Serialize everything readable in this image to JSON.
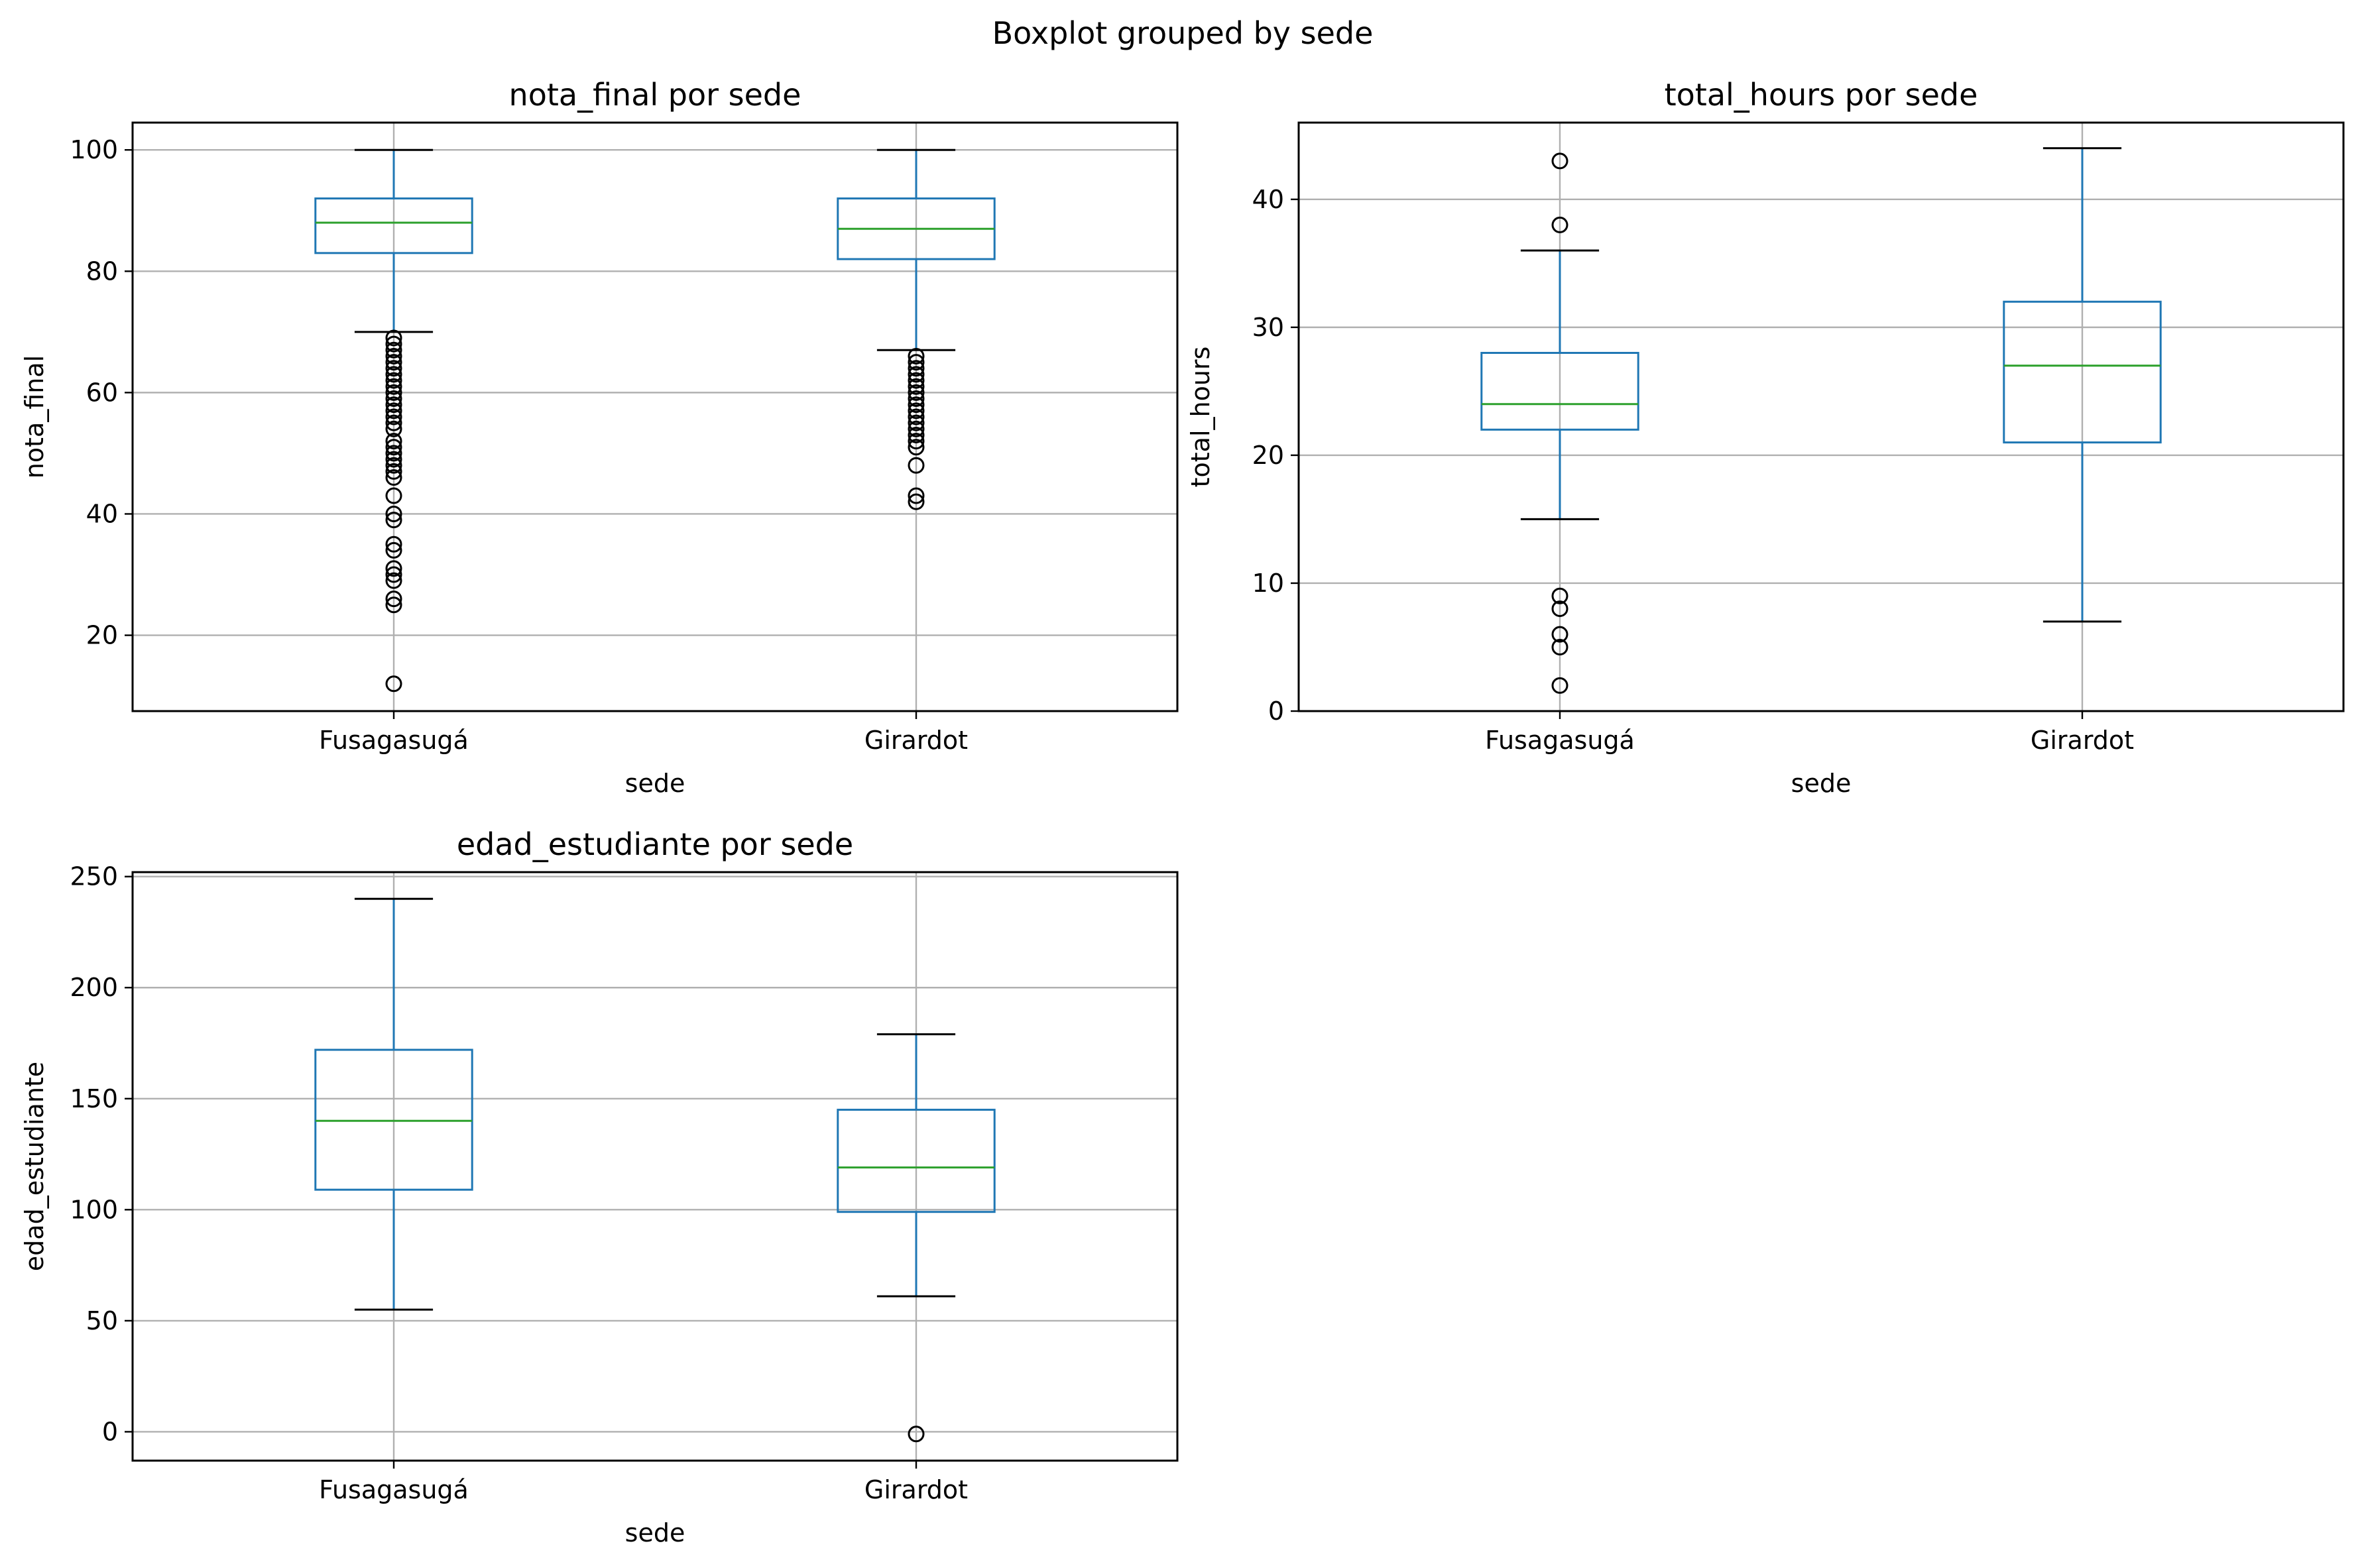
{
  "figure": {
    "suptitle": "Boxplot grouped by sede"
  },
  "style": {
    "box_color": "#1f77b4",
    "median_color": "#2ca02c",
    "whisker_cap_color": "#000000",
    "flier_color": "#000000",
    "grid_color": "#b0b0b0"
  },
  "chart_data": [
    {
      "type": "box",
      "title": "nota_final por sede",
      "xlabel": "sede",
      "ylabel": "nota_final",
      "categories": [
        "Fusagasugá",
        "Girardot"
      ],
      "ylim": [
        7.5,
        104.5
      ],
      "yticks": [
        20,
        40,
        60,
        80,
        100
      ],
      "grid": true,
      "boxes": [
        {
          "category": "Fusagasugá",
          "whislo": 70,
          "q1": 83,
          "med": 88,
          "q3": 92,
          "whishi": 100,
          "fliers": [
            69,
            68,
            67,
            66,
            65,
            64,
            63,
            62,
            61,
            60,
            59,
            58,
            57,
            56,
            55,
            54,
            52,
            51,
            50,
            49,
            48,
            47,
            46,
            43,
            40,
            39,
            35,
            34,
            31,
            30,
            29,
            26,
            25,
            12
          ]
        },
        {
          "category": "Girardot",
          "whislo": 67,
          "q1": 82,
          "med": 87,
          "q3": 92,
          "whishi": 100,
          "fliers": [
            66,
            65,
            64,
            63,
            62,
            61,
            60,
            59,
            58,
            57,
            56,
            55,
            54,
            53,
            52,
            51,
            48,
            43,
            42
          ]
        }
      ]
    },
    {
      "type": "box",
      "title": "total_hours por sede",
      "xlabel": "sede",
      "ylabel": "total_hours",
      "categories": [
        "Fusagasugá",
        "Girardot"
      ],
      "ylim": [
        0,
        46
      ],
      "yticks": [
        0,
        10,
        20,
        30,
        40
      ],
      "grid": true,
      "boxes": [
        {
          "category": "Fusagasugá",
          "whislo": 15,
          "q1": 22,
          "med": 24,
          "q3": 28,
          "whishi": 36,
          "fliers": [
            43,
            38,
            9,
            8,
            6,
            5,
            2
          ]
        },
        {
          "category": "Girardot",
          "whislo": 7,
          "q1": 21,
          "med": 27,
          "q3": 32,
          "whishi": 44,
          "fliers": []
        }
      ]
    },
    {
      "type": "box",
      "title": "edad_estudiante por sede",
      "xlabel": "sede",
      "ylabel": "edad_estudiante",
      "categories": [
        "Fusagasugá",
        "Girardot"
      ],
      "ylim": [
        -13,
        252
      ],
      "yticks": [
        0,
        50,
        100,
        150,
        200,
        250
      ],
      "grid": true,
      "boxes": [
        {
          "category": "Fusagasugá",
          "whislo": 55,
          "q1": 109,
          "med": 140,
          "q3": 172,
          "whishi": 240,
          "fliers": []
        },
        {
          "category": "Girardot",
          "whislo": 61,
          "q1": 99,
          "med": 119,
          "q3": 145,
          "whishi": 179,
          "fliers": [
            -1
          ]
        }
      ]
    }
  ]
}
